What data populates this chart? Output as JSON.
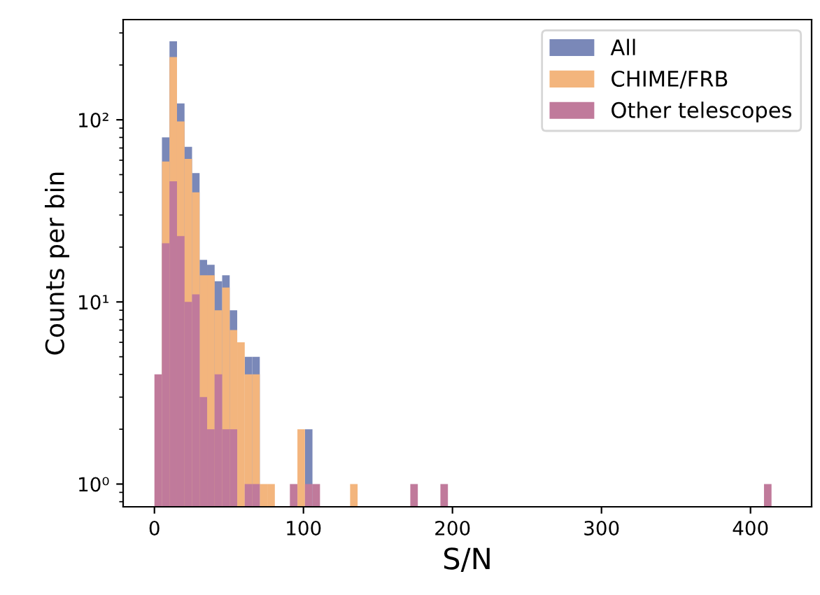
{
  "chart_data": {
    "type": "histogram",
    "xlabel": "S/N",
    "ylabel": "Counts per bin",
    "bins": [
      0,
      5.05,
      10.1,
      15.15,
      20.2,
      25.25,
      30.3,
      35.35,
      40.4,
      45.45,
      50.5,
      55.55,
      60.6,
      65.65,
      70.7,
      75.75,
      80.8,
      85.85,
      90.9,
      95.95,
      101,
      106.05,
      111.1,
      116.15,
      121.2,
      126.25,
      131.3,
      136.35,
      141.4,
      146.45,
      151.5,
      156.55,
      161.6,
      166.65,
      171.7,
      176.75,
      181.8,
      186.85,
      191.9,
      196.95,
      202,
      207.05,
      212.1,
      217.15,
      222.2,
      227.25,
      232.3,
      237.35,
      242.4,
      247.45,
      252.5,
      257.55,
      262.6,
      267.65,
      272.7,
      277.75,
      282.8,
      287.85,
      292.9,
      297.95,
      303,
      308.05,
      313.1,
      318.15,
      323.2,
      328.25,
      333.3,
      338.35,
      343.4,
      348.45,
      353.5,
      358.55,
      363.6,
      368.65,
      373.7,
      378.75,
      383.8,
      388.85,
      393.9,
      398.95,
      404,
      409.05,
      414.1
    ],
    "series": [
      {
        "name": "All",
        "color": "#7a88b8",
        "values": [
          null,
          80,
          270,
          123,
          71,
          51,
          17,
          16,
          13,
          14,
          9,
          null,
          5,
          5,
          null,
          null,
          null,
          null,
          null,
          null,
          2,
          null,
          null,
          null,
          null,
          null,
          null,
          null,
          null,
          null,
          null,
          null,
          null,
          null,
          null,
          null,
          null,
          null,
          null,
          null,
          null,
          null,
          null,
          null,
          null,
          null,
          null,
          null,
          null,
          null,
          null,
          null,
          null,
          null,
          null,
          null,
          null,
          null,
          null,
          null,
          null,
          null,
          null,
          null,
          null,
          null,
          null,
          null,
          null,
          null,
          null,
          null,
          null,
          null,
          null,
          null,
          null,
          null,
          null,
          null,
          null,
          null
        ]
      },
      {
        "name": "CHIME/FRB",
        "color": "#f3b57d",
        "values": [
          null,
          59,
          221,
          98,
          61,
          40,
          14,
          14,
          9,
          12,
          7,
          6,
          4,
          4,
          1,
          1,
          null,
          null,
          null,
          2,
          null,
          null,
          null,
          null,
          null,
          null,
          1,
          null,
          null,
          null,
          null,
          null,
          null,
          null,
          null,
          null,
          null,
          null,
          null,
          null,
          null,
          null,
          null,
          null,
          null,
          null,
          null,
          null,
          null,
          null,
          null,
          null,
          null,
          null,
          null,
          null,
          null,
          null,
          null,
          null,
          null,
          null,
          null,
          null,
          null,
          null,
          null,
          null,
          null,
          null,
          null,
          null,
          null,
          null,
          null,
          null,
          null,
          null,
          null,
          null,
          null,
          null
        ]
      },
      {
        "name": "Other telescopes",
        "color": "#c07a9b",
        "values": [
          4,
          21,
          46,
          23,
          10,
          11,
          3,
          2,
          4,
          2,
          2,
          null,
          1,
          1,
          null,
          null,
          null,
          null,
          1,
          null,
          1,
          1,
          null,
          null,
          null,
          null,
          null,
          null,
          null,
          null,
          null,
          null,
          null,
          null,
          1,
          null,
          null,
          null,
          1,
          null,
          null,
          null,
          null,
          null,
          null,
          null,
          null,
          null,
          null,
          null,
          null,
          null,
          null,
          null,
          null,
          null,
          null,
          null,
          null,
          null,
          null,
          null,
          null,
          null,
          null,
          null,
          null,
          null,
          null,
          null,
          null,
          null,
          null,
          null,
          null,
          null,
          null,
          null,
          null,
          null,
          null,
          1
        ]
      }
    ],
    "log": "y",
    "xlim": [
      -21,
      441
    ],
    "ylim": [
      0.75,
      355
    ],
    "xticks": [
      0,
      100,
      200,
      300,
      400
    ],
    "yticks": [
      {
        "value": 1,
        "label": "10⁰"
      },
      {
        "value": 10,
        "label": "10¹"
      },
      {
        "value": 100,
        "label": "10²"
      }
    ],
    "legend": "top right"
  }
}
